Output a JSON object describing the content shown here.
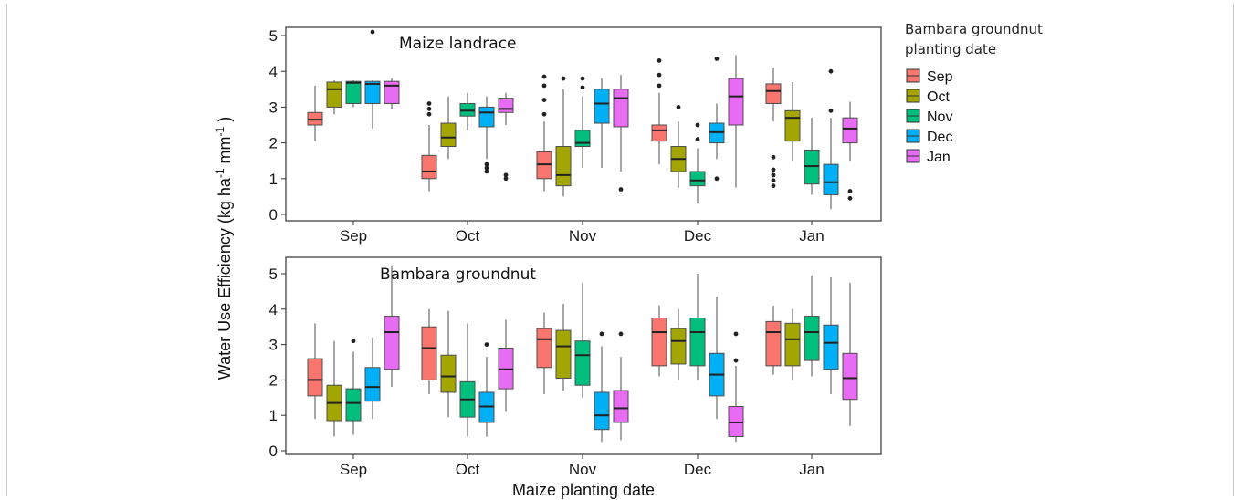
{
  "chart_data": {
    "type": "box",
    "ylabel_main": "Water Use Efficiency (kg ha",
    "ylabel_sup1": "-1",
    "ylabel_mid": " mm",
    "ylabel_sup2": "-1",
    "ylabel_end": " )",
    "xlabel": "Maize planting date",
    "legend": {
      "title_line1": "Bambara groundnut",
      "title_line2": "planting date",
      "position": "top-right",
      "entries": [
        "Sep",
        "Oct",
        "Nov",
        "Dec",
        "Jan"
      ]
    },
    "colors": {
      "Sep": "#F8766D",
      "Oct": "#A3A500",
      "Nov": "#00BF7D",
      "Dec": "#00B0F6",
      "Jan": "#E76BF3"
    },
    "categories": [
      "Sep",
      "Oct",
      "Nov",
      "Dec",
      "Jan"
    ],
    "ylim": [
      0,
      5
    ],
    "yticks": [
      "0",
      "1",
      "2",
      "3",
      "4",
      "5"
    ],
    "panels": [
      {
        "title": "Maize landrace",
        "groups": [
          {
            "category": "Sep",
            "boxes": [
              {
                "series": "Sep",
                "min": 2.05,
                "q1": 2.5,
                "median": 2.65,
                "q3": 2.85,
                "max": 3.6,
                "outliers": []
              },
              {
                "series": "Oct",
                "min": 2.8,
                "q1": 3.0,
                "median": 3.5,
                "q3": 3.7,
                "max": 3.75,
                "outliers": []
              },
              {
                "series": "Nov",
                "min": 3.0,
                "q1": 3.1,
                "median": 3.68,
                "q3": 3.72,
                "max": 3.75,
                "outliers": []
              },
              {
                "series": "Dec",
                "min": 2.4,
                "q1": 3.1,
                "median": 3.65,
                "q3": 3.72,
                "max": 3.75,
                "outliers": [
                  5.1
                ]
              },
              {
                "series": "Jan",
                "min": 2.95,
                "q1": 3.1,
                "median": 3.6,
                "q3": 3.72,
                "max": 3.8,
                "outliers": []
              }
            ]
          },
          {
            "category": "Oct",
            "boxes": [
              {
                "series": "Sep",
                "min": 0.65,
                "q1": 1.0,
                "median": 1.2,
                "q3": 1.65,
                "max": 2.5,
                "outliers": [
                  2.8,
                  2.95,
                  3.1
                ]
              },
              {
                "series": "Oct",
                "min": 1.55,
                "q1": 1.9,
                "median": 2.15,
                "q3": 2.55,
                "max": 3.3,
                "outliers": []
              },
              {
                "series": "Nov",
                "min": 2.35,
                "q1": 2.75,
                "median": 2.9,
                "q3": 3.1,
                "max": 3.4,
                "outliers": []
              },
              {
                "series": "Dec",
                "min": 1.55,
                "q1": 2.45,
                "median": 2.85,
                "q3": 3.0,
                "max": 3.3,
                "outliers": [
                  1.2,
                  1.3,
                  1.4
                ]
              },
              {
                "series": "Jan",
                "min": 2.5,
                "q1": 2.85,
                "median": 2.95,
                "q3": 3.25,
                "max": 3.4,
                "outliers": [
                  1.0,
                  1.1
                ]
              }
            ]
          },
          {
            "category": "Nov",
            "boxes": [
              {
                "series": "Sep",
                "min": 0.65,
                "q1": 1.0,
                "median": 1.4,
                "q3": 1.75,
                "max": 2.6,
                "outliers": [
                  2.8,
                  3.2,
                  3.6,
                  3.85
                ]
              },
              {
                "series": "Oct",
                "min": 0.5,
                "q1": 0.8,
                "median": 1.1,
                "q3": 1.9,
                "max": 3.5,
                "outliers": [
                  3.8
                ]
              },
              {
                "series": "Nov",
                "min": 1.3,
                "q1": 1.9,
                "median": 2.0,
                "q3": 2.35,
                "max": 3.3,
                "outliers": [
                  3.55,
                  3.8
                ]
              },
              {
                "series": "Dec",
                "min": 1.3,
                "q1": 2.55,
                "median": 3.1,
                "q3": 3.5,
                "max": 3.8,
                "outliers": []
              },
              {
                "series": "Jan",
                "min": 1.2,
                "q1": 2.45,
                "median": 3.25,
                "q3": 3.5,
                "max": 3.9,
                "outliers": [
                  0.7
                ]
              }
            ]
          },
          {
            "category": "Dec",
            "boxes": [
              {
                "series": "Sep",
                "min": 1.4,
                "q1": 2.05,
                "median": 2.35,
                "q3": 2.5,
                "max": 3.4,
                "outliers": [
                  3.6,
                  3.9,
                  4.3
                ]
              },
              {
                "series": "Oct",
                "min": 0.75,
                "q1": 1.2,
                "median": 1.55,
                "q3": 1.9,
                "max": 2.6,
                "outliers": [
                  3.0
                ]
              },
              {
                "series": "Nov",
                "min": 0.3,
                "q1": 0.8,
                "median": 0.95,
                "q3": 1.2,
                "max": 1.85,
                "outliers": [
                  2.1,
                  2.5
                ]
              },
              {
                "series": "Dec",
                "min": 1.55,
                "q1": 2.0,
                "median": 2.3,
                "q3": 2.55,
                "max": 3.1,
                "outliers": [
                  1.0,
                  4.35
                ]
              },
              {
                "series": "Jan",
                "min": 0.75,
                "q1": 2.5,
                "median": 3.3,
                "q3": 3.8,
                "max": 4.45,
                "outliers": []
              }
            ]
          },
          {
            "category": "Jan",
            "boxes": [
              {
                "series": "Sep",
                "min": 2.6,
                "q1": 3.1,
                "median": 3.45,
                "q3": 3.65,
                "max": 4.1,
                "outliers": [
                  0.8,
                  0.95,
                  1.1,
                  1.25,
                  1.6
                ]
              },
              {
                "series": "Oct",
                "min": 1.5,
                "q1": 2.05,
                "median": 2.7,
                "q3": 2.9,
                "max": 3.7,
                "outliers": []
              },
              {
                "series": "Nov",
                "min": 0.55,
                "q1": 0.85,
                "median": 1.35,
                "q3": 1.8,
                "max": 2.7,
                "outliers": []
              },
              {
                "series": "Dec",
                "min": 0.15,
                "q1": 0.55,
                "median": 0.9,
                "q3": 1.4,
                "max": 2.7,
                "outliers": [
                  2.9,
                  4.0
                ]
              },
              {
                "series": "Jan",
                "min": 1.5,
                "q1": 2.0,
                "median": 2.4,
                "q3": 2.7,
                "max": 3.15,
                "outliers": [
                  0.45,
                  0.65
                ]
              }
            ]
          }
        ]
      },
      {
        "title": "Bambara groundnut",
        "groups": [
          {
            "category": "Sep",
            "boxes": [
              {
                "series": "Sep",
                "min": 0.9,
                "q1": 1.55,
                "median": 2.0,
                "q3": 2.6,
                "max": 3.6,
                "outliers": []
              },
              {
                "series": "Oct",
                "min": 0.4,
                "q1": 0.85,
                "median": 1.35,
                "q3": 1.85,
                "max": 3.1,
                "outliers": []
              },
              {
                "series": "Nov",
                "min": 0.45,
                "q1": 0.85,
                "median": 1.35,
                "q3": 1.75,
                "max": 2.8,
                "outliers": [
                  3.1
                ]
              },
              {
                "series": "Dec",
                "min": 0.9,
                "q1": 1.4,
                "median": 1.8,
                "q3": 2.35,
                "max": 3.2,
                "outliers": []
              },
              {
                "series": "Jan",
                "min": 1.8,
                "q1": 2.3,
                "median": 3.35,
                "q3": 3.8,
                "max": 5.2,
                "outliers": []
              }
            ]
          },
          {
            "category": "Oct",
            "boxes": [
              {
                "series": "Sep",
                "min": 1.6,
                "q1": 2.0,
                "median": 2.9,
                "q3": 3.5,
                "max": 4.0,
                "outliers": []
              },
              {
                "series": "Oct",
                "min": 0.95,
                "q1": 1.65,
                "median": 2.1,
                "q3": 2.7,
                "max": 3.95,
                "outliers": []
              },
              {
                "series": "Nov",
                "min": 0.4,
                "q1": 0.95,
                "median": 1.45,
                "q3": 1.95,
                "max": 3.6,
                "outliers": []
              },
              {
                "series": "Dec",
                "min": 0.4,
                "q1": 0.8,
                "median": 1.25,
                "q3": 1.65,
                "max": 2.65,
                "outliers": [
                  3.0
                ]
              },
              {
                "series": "Jan",
                "min": 1.1,
                "q1": 1.75,
                "median": 2.3,
                "q3": 2.9,
                "max": 3.7,
                "outliers": []
              }
            ]
          },
          {
            "category": "Nov",
            "boxes": [
              {
                "series": "Sep",
                "min": 1.6,
                "q1": 2.35,
                "median": 3.15,
                "q3": 3.45,
                "max": 3.9,
                "outliers": []
              },
              {
                "series": "Oct",
                "min": 1.7,
                "q1": 2.05,
                "median": 2.95,
                "q3": 3.4,
                "max": 4.15,
                "outliers": []
              },
              {
                "series": "Nov",
                "min": 1.5,
                "q1": 1.85,
                "median": 2.7,
                "q3": 3.1,
                "max": 4.75,
                "outliers": []
              },
              {
                "series": "Dec",
                "min": 0.25,
                "q1": 0.6,
                "median": 1.0,
                "q3": 1.65,
                "max": 2.95,
                "outliers": [
                  3.3
                ]
              },
              {
                "series": "Jan",
                "min": 0.3,
                "q1": 0.8,
                "median": 1.2,
                "q3": 1.7,
                "max": 2.65,
                "outliers": [
                  3.3
                ]
              }
            ]
          },
          {
            "category": "Dec",
            "boxes": [
              {
                "series": "Sep",
                "min": 2.1,
                "q1": 2.4,
                "median": 3.35,
                "q3": 3.75,
                "max": 4.1,
                "outliers": []
              },
              {
                "series": "Oct",
                "min": 2.0,
                "q1": 2.45,
                "median": 3.1,
                "q3": 3.45,
                "max": 4.0,
                "outliers": []
              },
              {
                "series": "Nov",
                "min": 2.0,
                "q1": 2.4,
                "median": 3.35,
                "q3": 3.75,
                "max": 5.0,
                "outliers": []
              },
              {
                "series": "Dec",
                "min": 0.9,
                "q1": 1.55,
                "median": 2.15,
                "q3": 2.75,
                "max": 4.35,
                "outliers": []
              },
              {
                "series": "Jan",
                "min": 0.25,
                "q1": 0.4,
                "median": 0.8,
                "q3": 1.25,
                "max": 2.4,
                "outliers": [
                  2.55,
                  3.3
                ]
              }
            ]
          },
          {
            "category": "Jan",
            "boxes": [
              {
                "series": "Sep",
                "min": 2.15,
                "q1": 2.4,
                "median": 3.35,
                "q3": 3.65,
                "max": 4.1,
                "outliers": []
              },
              {
                "series": "Oct",
                "min": 2.0,
                "q1": 2.4,
                "median": 3.15,
                "q3": 3.6,
                "max": 4.0,
                "outliers": []
              },
              {
                "series": "Nov",
                "min": 2.1,
                "q1": 2.55,
                "median": 3.35,
                "q3": 3.8,
                "max": 4.95,
                "outliers": []
              },
              {
                "series": "Dec",
                "min": 1.6,
                "q1": 2.3,
                "median": 3.05,
                "q3": 3.55,
                "max": 4.9,
                "outliers": []
              },
              {
                "series": "Jan",
                "min": 0.7,
                "q1": 1.45,
                "median": 2.05,
                "q3": 2.75,
                "max": 4.75,
                "outliers": []
              }
            ]
          }
        ]
      }
    ]
  }
}
